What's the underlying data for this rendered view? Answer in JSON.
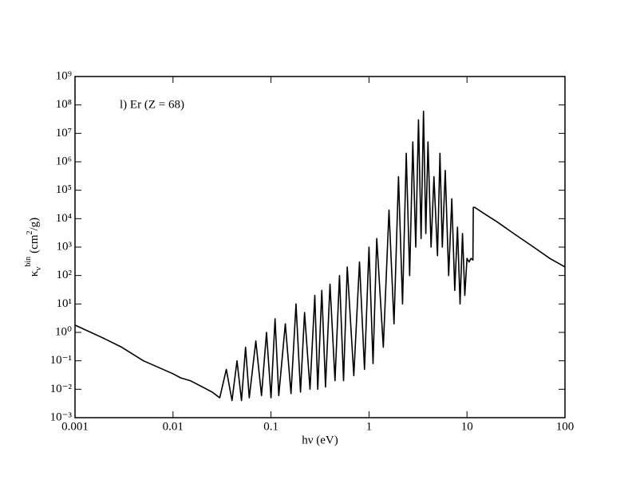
{
  "chart_data": {
    "type": "line",
    "annotation": "l) Er (Z = 68)",
    "x_label": "hν (eV)",
    "y_label": {
      "symbol": "κ",
      "sub": "ν",
      "sup": "bin",
      "unit_start": "(cm",
      "unit_sup": "2",
      "unit_end": "/g)"
    },
    "xscale": "log",
    "yscale": "log",
    "grid": false,
    "xlim": [
      0.001,
      100
    ],
    "ylim": [
      0.001,
      1000000000
    ],
    "xticks": [
      0.001,
      0.01,
      0.1,
      1,
      10,
      100
    ],
    "yticks": [
      {
        "value": 0.001,
        "label": "10⁻³"
      },
      {
        "value": 0.01,
        "label": "10⁻²"
      },
      {
        "value": 0.1,
        "label": "10⁻¹"
      },
      {
        "value": 1,
        "label": "10⁰"
      },
      {
        "value": 10,
        "label": "10¹"
      },
      {
        "value": 100,
        "label": "10²"
      },
      {
        "value": 1000,
        "label": "10³"
      },
      {
        "value": 10000,
        "label": "10⁴"
      },
      {
        "value": 100000,
        "label": "10⁵"
      },
      {
        "value": 1000000,
        "label": "10⁶"
      },
      {
        "value": 10000000,
        "label": "10⁷"
      },
      {
        "value": 100000000,
        "label": "10⁸"
      },
      {
        "value": 1000000000,
        "label": "10⁹"
      }
    ],
    "color": "#000000",
    "x": [
      0.001,
      0.002,
      0.003,
      0.005,
      0.007,
      0.01,
      0.012,
      0.015,
      0.02,
      0.025,
      0.03,
      0.035,
      0.04,
      0.045,
      0.05,
      0.055,
      0.06,
      0.07,
      0.08,
      0.09,
      0.1,
      0.11,
      0.12,
      0.14,
      0.16,
      0.18,
      0.2,
      0.22,
      0.25,
      0.28,
      0.3,
      0.33,
      0.36,
      0.4,
      0.45,
      0.5,
      0.55,
      0.6,
      0.7,
      0.8,
      0.9,
      1,
      1.1,
      1.2,
      1.4,
      1.6,
      1.8,
      2,
      2.2,
      2.4,
      2.6,
      2.8,
      3,
      3.2,
      3.4,
      3.6,
      3.8,
      4,
      4.3,
      4.6,
      5,
      5.3,
      5.6,
      6,
      6.5,
      7,
      7.5,
      8,
      8.5,
      9,
      9.5,
      10,
      10.5,
      11,
      11.5,
      11.6,
      12,
      15,
      20,
      30,
      50,
      70,
      100
    ],
    "values": [
      1.8,
      0.6,
      0.3,
      0.1,
      0.06,
      0.035,
      0.025,
      0.02,
      0.012,
      0.008,
      0.005,
      0.05,
      0.004,
      0.1,
      0.004,
      0.3,
      0.005,
      0.5,
      0.006,
      1,
      0.005,
      3,
      0.006,
      2,
      0.007,
      10,
      0.008,
      5,
      0.01,
      20,
      0.01,
      30,
      0.012,
      50,
      0.02,
      100,
      0.02,
      200,
      0.03,
      300,
      0.05,
      1000,
      0.08,
      2000,
      0.3,
      20000,
      2,
      300000,
      10,
      2000000,
      100,
      5000000,
      1000,
      30000000,
      2000,
      60000000,
      3000,
      5000000,
      1000,
      300000,
      500,
      2000000,
      1000,
      500000,
      100,
      50000,
      30,
      5000,
      10,
      3000,
      20,
      400,
      300,
      400,
      350,
      25000,
      25000,
      15000,
      8000,
      3000,
      900,
      400,
      200
    ]
  }
}
